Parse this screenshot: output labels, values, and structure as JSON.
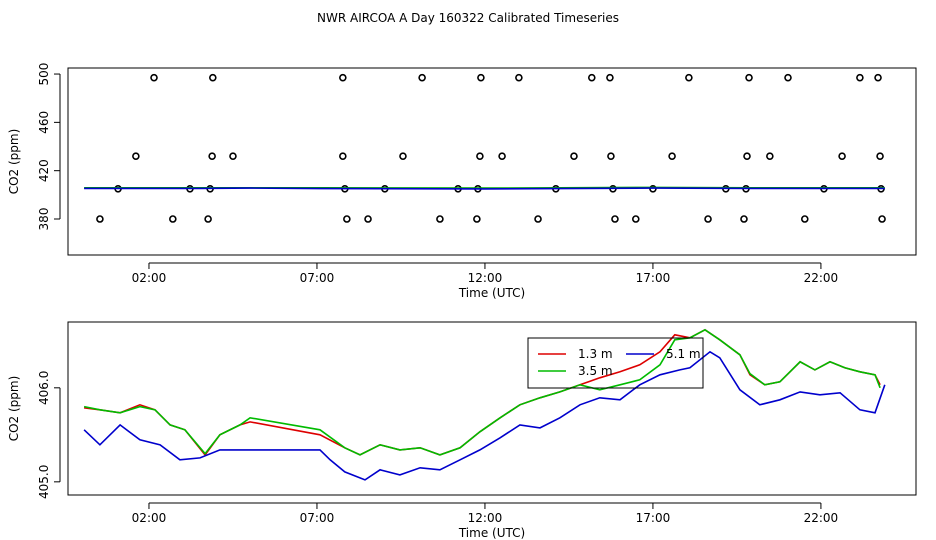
{
  "title": "NWR AIRCOA A  Day 160322  Calibrated Timeseries",
  "chart_data": [
    {
      "type": "scatter",
      "xlabel": "Time (UTC)",
      "ylabel": "CO2 (ppm)",
      "xlim": [
        -0.41,
        24.83
      ],
      "ylim": [
        350.2,
        505
      ],
      "xticks": [
        {
          "value": 2,
          "label": "02:00"
        },
        {
          "value": 7,
          "label": "07:00"
        },
        {
          "value": 12,
          "label": "12:00"
        },
        {
          "value": 17,
          "label": "17:00"
        },
        {
          "value": 22,
          "label": "22:00"
        }
      ],
      "yticks": [
        380,
        420,
        460,
        500
      ],
      "series": [
        {
          "style": "points",
          "color": "#000000",
          "x": [
            2.15,
            3.9,
            7.77,
            10.13,
            11.88,
            13.01,
            15.18,
            15.72,
            18.07,
            19.86,
            21.02,
            23.16,
            23.7,
            1.61,
            3.88,
            4.5,
            7.77,
            9.56,
            11.85,
            12.51,
            14.65,
            15.75,
            17.57,
            19.8,
            20.48,
            22.63,
            23.76,
            1.08,
            3.22,
            3.82,
            7.83,
            9.02,
            11.2,
            11.79,
            14.11,
            15.81,
            17.0,
            19.17,
            19.77,
            22.09,
            23.79,
            0.54,
            2.71,
            3.76,
            7.89,
            8.52,
            10.66,
            11.76,
            13.58,
            15.87,
            16.49,
            18.64,
            19.71,
            21.52,
            23.82
          ],
          "values": [
            497,
            497,
            497,
            497,
            497,
            497,
            497,
            497,
            497,
            497,
            497,
            497,
            497,
            432,
            432,
            432,
            432,
            432,
            432,
            432,
            432,
            432,
            432,
            432,
            432,
            432,
            432,
            405,
            405,
            405,
            405,
            405,
            405,
            405,
            405,
            405,
            405,
            405,
            405,
            405,
            405,
            380,
            380,
            380,
            380,
            380,
            380,
            380,
            380,
            380,
            380,
            380,
            380,
            380,
            380
          ]
        },
        {
          "style": "line",
          "color": "#00aa00",
          "x": [
            0.07,
            3.5,
            7.1,
            12.0,
            17.0,
            20.0,
            23.9
          ],
          "values": [
            405.8,
            405.8,
            405.8,
            405.6,
            406.2,
            405.8,
            405.8
          ]
        },
        {
          "style": "line",
          "color": "#0000cc",
          "x": [
            0.07,
            3.5,
            5.0,
            7.1,
            12.0,
            17.0,
            20.0,
            23.9
          ],
          "values": [
            405.3,
            405.3,
            405.6,
            405.2,
            404.9,
            405.6,
            405.3,
            405.3
          ]
        }
      ]
    },
    {
      "type": "line",
      "xlabel": "Time (UTC)",
      "ylabel": "CO2 (ppm)",
      "xlim": [
        -0.41,
        24.83
      ],
      "ylim": [
        404.86,
        406.7
      ],
      "xticks": [
        {
          "value": 2,
          "label": "02:00"
        },
        {
          "value": 7,
          "label": "07:00"
        },
        {
          "value": 12,
          "label": "12:00"
        },
        {
          "value": 17,
          "label": "17:00"
        },
        {
          "value": 22,
          "label": "22:00"
        }
      ],
      "yticks": [
        {
          "value": 405,
          "label": "405.0"
        },
        {
          "value": 406,
          "label": "406.0"
        }
      ],
      "legend": "top",
      "series": [
        {
          "name": "1.3 m",
          "style": "line",
          "color": "#dd0000",
          "x": [
            0.07,
            0.54,
            1.14,
            1.73,
            2.18,
            2.63,
            3.07,
            3.67,
            4.11,
            4.71,
            5.01,
            7.09,
            7.83,
            8.28,
            8.88,
            9.47,
            10.07,
            10.66,
            11.26,
            11.85,
            12.45,
            13.04,
            13.64,
            14.23,
            14.83,
            15.42,
            16.02,
            16.61,
            17.21,
            17.65,
            18.1,
            18.55,
            18.99,
            19.59,
            19.89,
            20.33,
            20.78,
            21.08,
            21.38,
            21.82,
            22.27,
            22.71,
            23.16,
            23.61,
            23.76
          ],
          "values": [
            405.787,
            405.766,
            405.734,
            405.819,
            405.766,
            405.606,
            405.553,
            405.287,
            405.5,
            405.606,
            405.638,
            405.5,
            405.362,
            405.287,
            405.394,
            405.34,
            405.362,
            405.287,
            405.362,
            405.532,
            405.681,
            405.819,
            405.894,
            405.957,
            406.032,
            406.106,
            406.17,
            406.245,
            406.383,
            406.564,
            406.532,
            406.617,
            406.511,
            406.351,
            406.138,
            406.032,
            406.064,
            406.17,
            406.277,
            406.191,
            406.277,
            406.213,
            406.17,
            406.138,
            406.032
          ]
        },
        {
          "name": "3.5 m",
          "style": "line",
          "color": "#00bb00",
          "x": [
            0.07,
            0.54,
            1.14,
            1.73,
            2.18,
            2.63,
            3.07,
            3.67,
            4.11,
            4.71,
            5.01,
            7.09,
            7.83,
            8.28,
            8.88,
            9.47,
            10.07,
            10.66,
            11.26,
            11.85,
            12.45,
            13.04,
            13.64,
            14.23,
            14.83,
            15.42,
            16.02,
            16.61,
            17.21,
            17.65,
            18.1,
            18.55,
            18.99,
            19.59,
            19.89,
            20.33,
            20.78,
            21.08,
            21.38,
            21.82,
            22.27,
            22.71,
            23.16,
            23.61,
            23.76
          ],
          "values": [
            405.8,
            405.766,
            405.734,
            405.8,
            405.766,
            405.606,
            405.553,
            405.3,
            405.5,
            405.606,
            405.681,
            405.553,
            405.362,
            405.287,
            405.394,
            405.34,
            405.362,
            405.287,
            405.362,
            405.532,
            405.681,
            405.819,
            405.894,
            405.957,
            406.032,
            405.979,
            406.032,
            406.085,
            406.245,
            406.511,
            406.532,
            406.617,
            406.511,
            406.351,
            406.15,
            406.032,
            406.064,
            406.17,
            406.277,
            406.191,
            406.277,
            406.213,
            406.17,
            406.138,
            406.0
          ]
        },
        {
          "name": "5.1 m",
          "style": "line",
          "color": "#0000cc",
          "x": [
            0.07,
            0.54,
            1.14,
            1.73,
            2.33,
            2.92,
            3.52,
            4.11,
            4.71,
            7.09,
            7.39,
            7.83,
            8.43,
            8.88,
            9.47,
            10.07,
            10.66,
            11.26,
            11.85,
            12.45,
            13.04,
            13.64,
            14.23,
            14.83,
            15.42,
            16.02,
            16.61,
            17.21,
            17.8,
            18.1,
            18.7,
            18.99,
            19.59,
            20.18,
            20.78,
            21.38,
            21.97,
            22.57,
            23.16,
            23.61,
            23.9
          ],
          "values": [
            405.553,
            405.394,
            405.606,
            405.447,
            405.394,
            405.234,
            405.255,
            405.34,
            405.34,
            405.34,
            405.234,
            405.106,
            405.021,
            405.128,
            405.074,
            405.149,
            405.128,
            405.234,
            405.34,
            405.468,
            405.606,
            405.574,
            405.681,
            405.819,
            405.894,
            405.872,
            406.032,
            406.138,
            406.191,
            406.213,
            406.383,
            406.319,
            405.979,
            405.819,
            405.872,
            405.957,
            405.926,
            405.947,
            405.766,
            405.734,
            406.032
          ]
        }
      ]
    }
  ]
}
